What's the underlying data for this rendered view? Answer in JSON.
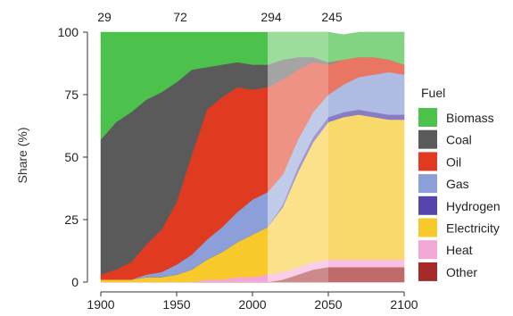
{
  "chart_data": {
    "type": "area",
    "stacked": true,
    "stack_order": [
      "Other",
      "Heat",
      "Electricity",
      "Hydrogen",
      "Gas",
      "Oil",
      "Coal",
      "Biomass"
    ],
    "x": [
      1900,
      1910,
      1920,
      1930,
      1940,
      1950,
      1960,
      1970,
      1980,
      1990,
      2000,
      2010,
      2020,
      2030,
      2040,
      2050,
      2060,
      2070,
      2080,
      2090,
      2100
    ],
    "series": [
      {
        "name": "Other",
        "color": "#a52a2a",
        "values": [
          0,
          0,
          0,
          0,
          0,
          0,
          0,
          0,
          0,
          0,
          0,
          0,
          1,
          3,
          5,
          6,
          6,
          6,
          6,
          6,
          6
        ]
      },
      {
        "name": "Heat",
        "color": "#f2a7d6",
        "values": [
          0,
          0,
          0,
          0,
          0,
          0,
          0,
          1,
          1,
          2,
          2,
          3,
          3,
          3,
          3,
          3,
          3,
          3,
          3,
          3,
          3
        ]
      },
      {
        "name": "Electricity",
        "color": "#f8c92b",
        "values": [
          1,
          1,
          1,
          2,
          2,
          3,
          5,
          8,
          11,
          14,
          17,
          19,
          26,
          38,
          48,
          55,
          57,
          58,
          57,
          56,
          56
        ]
      },
      {
        "name": "Hydrogen",
        "color": "#5544aa",
        "values": [
          0,
          0,
          0,
          0,
          0,
          0,
          0,
          0,
          0,
          0,
          0,
          0,
          1,
          2,
          2,
          2,
          2,
          2,
          2,
          2,
          2
        ]
      },
      {
        "name": "Gas",
        "color": "#8c9fd8",
        "values": [
          0,
          0,
          0,
          1,
          2,
          4,
          6,
          8,
          10,
          12,
          14,
          14,
          12,
          11,
          10,
          9,
          11,
          13,
          15,
          17,
          16
        ]
      },
      {
        "name": "Oil",
        "color": "#e03a20",
        "values": [
          2,
          4,
          7,
          12,
          17,
          25,
          40,
          52,
          52,
          50,
          44,
          42,
          38,
          28,
          20,
          12,
          10,
          8,
          7,
          5,
          4
        ]
      },
      {
        "name": "Coal",
        "color": "#5a5a5a",
        "values": [
          54,
          59,
          60,
          58,
          55,
          48,
          34,
          17,
          13,
          10,
          10,
          9,
          8,
          5,
          2,
          1,
          0,
          0,
          0,
          0,
          0
        ]
      },
      {
        "name": "Biomass",
        "color": "#4cc24c",
        "values": [
          43,
          36,
          32,
          27,
          24,
          20,
          15,
          14,
          13,
          12,
          13,
          13,
          11,
          10,
          10,
          12,
          10,
          10,
          10,
          11,
          13
        ]
      }
    ],
    "top_labels": [
      {
        "x": 1900,
        "label": "29"
      },
      {
        "x": 1950,
        "label": "72"
      },
      {
        "x": 2010,
        "label": "294"
      },
      {
        "x": 2050,
        "label": "245"
      }
    ],
    "shaded_periods": [
      {
        "from": 2010,
        "to": 2050,
        "opacity": 0.45
      },
      {
        "from": 2050,
        "to": 2100,
        "opacity": 0.3
      }
    ],
    "xlim": [
      1900,
      2100
    ],
    "ylim": [
      0,
      100
    ],
    "xticks": [
      1900,
      1950,
      2000,
      2050,
      2100
    ],
    "yticks": [
      0,
      25,
      50,
      75,
      100
    ],
    "xlabel": "",
    "ylabel": "Share (%)",
    "legend_title": "Fuel",
    "legend_position": "right",
    "grid": false
  }
}
